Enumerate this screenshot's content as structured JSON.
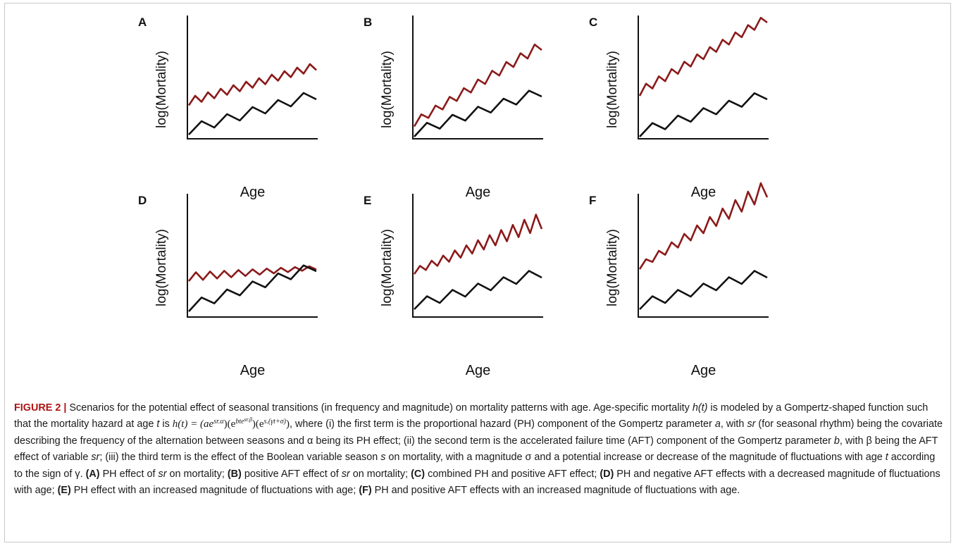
{
  "figure": {
    "label": "FIGURE 2 |",
    "colors": {
      "treatment_line": "#8b1a1a",
      "baseline_line": "#111111",
      "heading": "#b01212"
    },
    "panels": [
      {
        "letter": "A",
        "ylabel": "log(Mortality)",
        "xlabel": "Age"
      },
      {
        "letter": "B",
        "ylabel": "log(Mortality)",
        "xlabel": "Age"
      },
      {
        "letter": "C",
        "ylabel": "log(Mortality)",
        "xlabel": "Age"
      },
      {
        "letter": "D",
        "ylabel": "log(Mortality)",
        "xlabel": "Age"
      },
      {
        "letter": "E",
        "ylabel": "log(Mortality)",
        "xlabel": "Age"
      },
      {
        "letter": "F",
        "ylabel": "log(Mortality)",
        "xlabel": "Age"
      }
    ]
  },
  "caption": {
    "p1": " Scenarios for the potential effect of seasonal transitions (in frequency and magnitude) on mortality patterns with age. Age-specific mortality ",
    "ht": "h(t)",
    "p2": " is modeled by a Gompertz-shaped function such that the mortality hazard at age ",
    "t": "t",
    "p3": " is ",
    "formula_h": "h(t) = (ae",
    "formula_exp1": "sr.α",
    "formula_mid1": ")(e",
    "formula_exp2a": "bte",
    "formula_exp2b": "sr.β",
    "formula_mid2": ")(e",
    "formula_exp3": "s.(γt+σ)",
    "formula_end": ")",
    "p4": ", where (i) the first term is the proportional hazard (PH) component of the Gompertz parameter ",
    "a": "a",
    "p5": ", with ",
    "sr1": "sr",
    "p6": " (for seasonal rhythm) being the covariate describing the frequency of the alternation between seasons and α being its PH effect; (ii) the second term is the accelerated failure time (AFT) component of the Gompertz parameter ",
    "b": "b",
    "p7": ", with β being the AFT effect of variable ",
    "sr2": "sr",
    "p8": "; (iii) the third term is the effect of the Boolean variable season ",
    "s": "s",
    "p9": " on mortality, with a magnitude σ and a potential increase or decrease of the magnitude of fluctuations with age ",
    "t2": "t",
    "p10": " according to the sign of γ. ",
    "hA": "(A)",
    "tA1": " PH effect of ",
    "srA": "sr",
    "tA2": " on mortality; ",
    "hB": "(B)",
    "tB1": " positive AFT effect of ",
    "srB": "sr",
    "tB2": " on mortality; ",
    "hC": "(C)",
    "tC": " combined PH and positive AFT effect; ",
    "hD": "(D)",
    "tD": " PH and negative AFT effects with a decreased magnitude of fluctuations with age; ",
    "hE": "(E)",
    "tE": " PH effect with an increased magnitude of fluctuations with age; ",
    "hF": "(F)",
    "tF": " PH and positive AFT effects with an increased magnitude of fluctuations with age."
  }
}
